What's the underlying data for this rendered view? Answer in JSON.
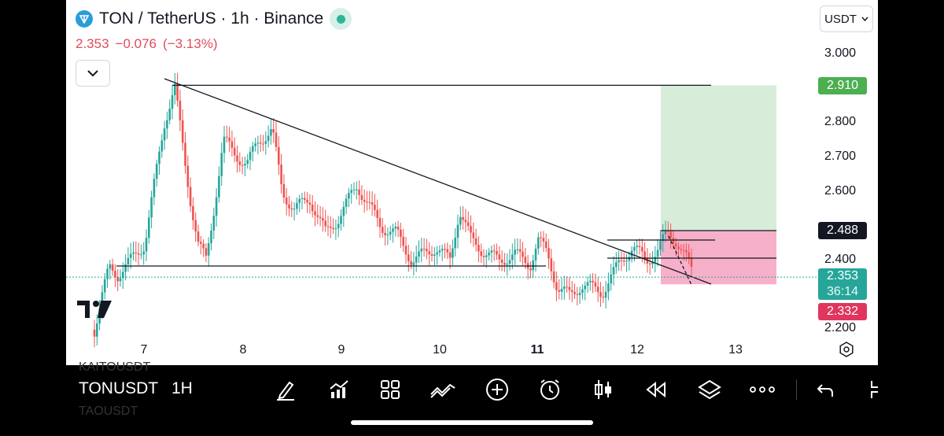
{
  "header": {
    "title": "TON / TetherUS · 1h · Binance",
    "price": "2.353",
    "change": "−0.076",
    "change_pct": "(−3.13%)",
    "currency": "USDT"
  },
  "price_scale": {
    "ticks": [
      "3.000",
      "2.800",
      "2.700",
      "2.600",
      "2.400",
      "2.200"
    ],
    "badges": {
      "target": "2.910",
      "entry": "2.488",
      "last": "2.353",
      "countdown": "36:14",
      "stop": "2.332"
    },
    "colors": {
      "target": "#4caf50",
      "entry": "#131722",
      "last": "#26a69a",
      "stop": "#e0365d"
    }
  },
  "time_scale": {
    "labels": [
      "7",
      "8",
      "9",
      "10",
      "11",
      "12",
      "13"
    ],
    "bold_label": "11"
  },
  "chart_data": {
    "type": "candlestick",
    "symbol": "TONUSDT",
    "interval": "1h",
    "x_range": [
      "6",
      "13"
    ],
    "ylim": [
      2.2,
      3.0
    ],
    "up_color": "#26a69a",
    "down_color": "#ef5350",
    "last_price": 2.353,
    "position": {
      "entry": 2.488,
      "target": 2.91,
      "stop": 2.332
    },
    "candles": []
  },
  "toolbar": {
    "symbol": "TONUSDT",
    "symbol_prev": "KAITOUSDT",
    "symbol_next": "TAOUSDT",
    "timeframe": "1H",
    "icons": [
      "drawing-icon",
      "indicators-icon",
      "templates-icon",
      "compare-icon",
      "add-icon",
      "alert-icon",
      "chart-type-icon",
      "replay-icon",
      "layers-icon",
      "more-icon",
      "undo-icon",
      "layout-icon"
    ]
  }
}
